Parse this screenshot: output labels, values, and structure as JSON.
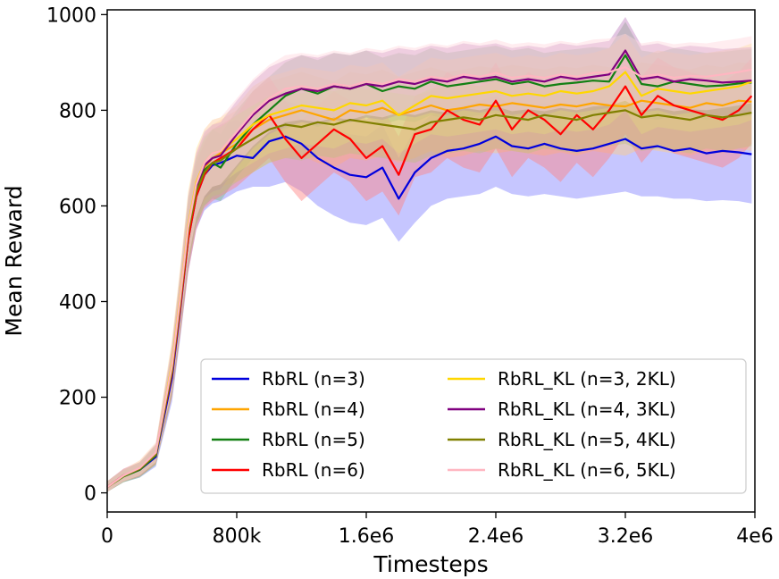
{
  "chart_data": {
    "type": "line",
    "title": "",
    "xlabel": "Timesteps",
    "ylabel": "Mean Reward",
    "xlim": [
      0,
      4000000
    ],
    "ylim": [
      -40,
      1010
    ],
    "xticks": [
      0,
      800000,
      1600000,
      2400000,
      3200000,
      4000000
    ],
    "xtick_labels": [
      "0",
      "800k",
      "1.6e6",
      "2.4e6",
      "3.2e6",
      "4e6"
    ],
    "yticks": [
      0,
      200,
      400,
      600,
      800,
      1000
    ],
    "ytick_labels": [
      "0",
      "200",
      "400",
      "600",
      "800",
      "1000"
    ],
    "grid": false,
    "legend_position": "bottom-right",
    "legend_columns": 2,
    "x": [
      0,
      100000,
      200000,
      300000,
      400000,
      450000,
      500000,
      550000,
      600000,
      650000,
      700000,
      800000,
      900000,
      1000000,
      1100000,
      1200000,
      1300000,
      1400000,
      1500000,
      1600000,
      1700000,
      1800000,
      1900000,
      2000000,
      2100000,
      2200000,
      2300000,
      2400000,
      2500000,
      2600000,
      2700000,
      2800000,
      2900000,
      3000000,
      3100000,
      3200000,
      3300000,
      3400000,
      3500000,
      3600000,
      3700000,
      3800000,
      3900000,
      3980000
    ],
    "series": [
      {
        "name": "RbRL (n=3)",
        "color": "#0000dd",
        "band": "#8080ff",
        "values": [
          12,
          35,
          48,
          75,
          240,
          380,
          530,
          620,
          665,
          685,
          690,
          705,
          700,
          735,
          745,
          730,
          700,
          680,
          665,
          660,
          680,
          615,
          670,
          700,
          715,
          720,
          730,
          745,
          725,
          720,
          730,
          720,
          715,
          720,
          730,
          740,
          720,
          725,
          715,
          720,
          710,
          715,
          712,
          708
        ],
        "lower": [
          2,
          22,
          32,
          55,
          190,
          320,
          460,
          550,
          590,
          605,
          610,
          630,
          640,
          640,
          650,
          630,
          600,
          580,
          565,
          560,
          575,
          525,
          565,
          600,
          615,
          620,
          625,
          640,
          625,
          620,
          625,
          620,
          615,
          620,
          625,
          630,
          620,
          620,
          615,
          615,
          610,
          612,
          610,
          605
        ],
        "upper": [
          24,
          48,
          62,
          95,
          290,
          440,
          600,
          690,
          730,
          760,
          770,
          780,
          760,
          800,
          820,
          810,
          780,
          760,
          750,
          745,
          770,
          700,
          760,
          790,
          800,
          810,
          820,
          830,
          810,
          805,
          815,
          805,
          800,
          805,
          815,
          830,
          810,
          815,
          805,
          810,
          800,
          805,
          802,
          800
        ]
      },
      {
        "name": "RbRL (n=4)",
        "color": "#ffa500",
        "band": "#ffcc80",
        "values": [
          12,
          36,
          50,
          80,
          255,
          395,
          545,
          640,
          680,
          700,
          710,
          730,
          760,
          780,
          790,
          800,
          790,
          780,
          800,
          795,
          805,
          790,
          800,
          810,
          800,
          805,
          812,
          808,
          815,
          810,
          805,
          812,
          808,
          815,
          810,
          808,
          820,
          815,
          810,
          805,
          815,
          810,
          820,
          818
        ],
        "lower": [
          2,
          24,
          34,
          60,
          205,
          335,
          475,
          570,
          610,
          630,
          640,
          650,
          670,
          690,
          700,
          705,
          690,
          680,
          700,
          695,
          705,
          690,
          700,
          715,
          700,
          705,
          715,
          710,
          715,
          710,
          705,
          712,
          705,
          715,
          710,
          705,
          720,
          715,
          710,
          705,
          715,
          710,
          720,
          715
        ],
        "upper": [
          24,
          50,
          64,
          100,
          305,
          455,
          615,
          710,
          750,
          770,
          780,
          800,
          840,
          860,
          870,
          880,
          870,
          860,
          880,
          875,
          885,
          870,
          880,
          890,
          880,
          885,
          892,
          888,
          895,
          890,
          885,
          892,
          888,
          895,
          890,
          888,
          900,
          895,
          890,
          885,
          895,
          890,
          900,
          898
        ]
      },
      {
        "name": "RbRL (n=5)",
        "color": "#138013",
        "band": "#7fbf7f",
        "values": [
          12,
          34,
          48,
          78,
          250,
          390,
          540,
          630,
          675,
          690,
          680,
          730,
          770,
          800,
          830,
          845,
          835,
          850,
          845,
          855,
          840,
          850,
          845,
          860,
          850,
          855,
          860,
          865,
          855,
          860,
          850,
          855,
          858,
          862,
          860,
          915,
          855,
          850,
          860,
          855,
          850,
          852,
          856,
          858
        ],
        "lower": [
          2,
          22,
          32,
          58,
          200,
          330,
          470,
          560,
          600,
          615,
          610,
          660,
          700,
          730,
          760,
          775,
          765,
          780,
          775,
          785,
          770,
          780,
          775,
          790,
          780,
          785,
          790,
          795,
          785,
          790,
          780,
          785,
          788,
          792,
          790,
          845,
          785,
          780,
          790,
          785,
          780,
          782,
          786,
          788
        ],
        "upper": [
          24,
          48,
          62,
          98,
          300,
          450,
          610,
          700,
          745,
          760,
          750,
          800,
          840,
          870,
          900,
          915,
          905,
          920,
          915,
          925,
          910,
          920,
          915,
          930,
          920,
          925,
          930,
          935,
          925,
          930,
          920,
          925,
          928,
          932,
          930,
          985,
          925,
          920,
          930,
          925,
          920,
          922,
          926,
          928
        ]
      },
      {
        "name": "RbRL (n=6)",
        "color": "#ff0000",
        "band": "#ff8080",
        "values": [
          12,
          36,
          50,
          80,
          250,
          385,
          530,
          620,
          665,
          690,
          700,
          720,
          760,
          790,
          740,
          700,
          730,
          760,
          740,
          700,
          725,
          665,
          750,
          760,
          800,
          780,
          770,
          820,
          760,
          800,
          780,
          750,
          790,
          760,
          800,
          850,
          790,
          830,
          810,
          800,
          790,
          780,
          800,
          830
        ],
        "lower": [
          2,
          24,
          34,
          60,
          200,
          325,
          460,
          550,
          595,
          610,
          620,
          640,
          670,
          700,
          650,
          610,
          640,
          670,
          650,
          610,
          630,
          580,
          660,
          670,
          700,
          680,
          670,
          720,
          660,
          700,
          680,
          650,
          690,
          660,
          700,
          750,
          690,
          730,
          710,
          700,
          690,
          680,
          700,
          730
        ],
        "upper": [
          24,
          50,
          64,
          100,
          300,
          445,
          600,
          690,
          735,
          760,
          770,
          790,
          840,
          870,
          820,
          780,
          810,
          840,
          820,
          780,
          805,
          745,
          830,
          840,
          880,
          860,
          850,
          900,
          840,
          880,
          860,
          830,
          870,
          840,
          880,
          930,
          870,
          910,
          890,
          880,
          870,
          860,
          880,
          910
        ]
      },
      {
        "name": "RbRL_KL (n=3, 2KL)",
        "color": "#ffd700",
        "band": "#ffe680",
        "values": [
          12,
          35,
          52,
          82,
          270,
          410,
          560,
          650,
          690,
          710,
          715,
          740,
          770,
          790,
          800,
          810,
          805,
          800,
          815,
          810,
          820,
          790,
          810,
          830,
          825,
          830,
          835,
          840,
          830,
          835,
          830,
          840,
          835,
          840,
          850,
          880,
          830,
          845,
          840,
          835,
          840,
          845,
          850,
          860
        ],
        "lower": [
          2,
          24,
          36,
          62,
          220,
          350,
          490,
          580,
          620,
          640,
          645,
          670,
          690,
          710,
          720,
          730,
          725,
          720,
          735,
          730,
          740,
          710,
          730,
          750,
          745,
          750,
          755,
          760,
          750,
          755,
          750,
          760,
          755,
          760,
          770,
          800,
          750,
          765,
          760,
          755,
          760,
          765,
          770,
          780
        ],
        "upper": [
          24,
          48,
          68,
          104,
          320,
          470,
          630,
          720,
          760,
          780,
          785,
          810,
          850,
          870,
          880,
          890,
          885,
          880,
          895,
          890,
          900,
          870,
          890,
          910,
          905,
          910,
          915,
          920,
          910,
          915,
          910,
          920,
          915,
          920,
          930,
          960,
          910,
          925,
          920,
          915,
          920,
          925,
          930,
          940
        ]
      },
      {
        "name": "RbRL_KL (n=4, 3KL)",
        "color": "#800080",
        "band": "#bf80bf",
        "values": [
          12,
          36,
          50,
          82,
          260,
          400,
          550,
          640,
          685,
          700,
          705,
          750,
          790,
          820,
          835,
          845,
          840,
          850,
          845,
          855,
          850,
          860,
          855,
          865,
          860,
          870,
          865,
          870,
          860,
          865,
          860,
          870,
          865,
          870,
          875,
          925,
          865,
          870,
          860,
          865,
          862,
          858,
          860,
          862
        ],
        "lower": [
          2,
          24,
          34,
          62,
          210,
          340,
          480,
          570,
          615,
          630,
          635,
          680,
          720,
          750,
          765,
          775,
          770,
          780,
          775,
          785,
          780,
          790,
          785,
          795,
          790,
          800,
          795,
          800,
          790,
          795,
          790,
          800,
          795,
          800,
          805,
          855,
          795,
          800,
          790,
          795,
          792,
          788,
          790,
          792
        ],
        "upper": [
          24,
          50,
          64,
          102,
          310,
          460,
          620,
          710,
          755,
          770,
          775,
          820,
          860,
          890,
          905,
          915,
          910,
          920,
          915,
          925,
          920,
          930,
          925,
          935,
          930,
          940,
          935,
          940,
          930,
          935,
          930,
          940,
          935,
          940,
          945,
          995,
          935,
          940,
          930,
          935,
          932,
          928,
          930,
          932
        ]
      },
      {
        "name": "RbRL_KL (n=5, 4KL)",
        "color": "#808000",
        "band": "#bfbf80",
        "values": [
          12,
          35,
          50,
          80,
          255,
          395,
          545,
          630,
          670,
          690,
          695,
          720,
          740,
          760,
          770,
          765,
          775,
          770,
          780,
          775,
          770,
          765,
          760,
          775,
          780,
          785,
          780,
          790,
          785,
          780,
          790,
          785,
          780,
          790,
          795,
          800,
          785,
          790,
          785,
          780,
          790,
          785,
          790,
          795
        ],
        "lower": [
          2,
          22,
          34,
          60,
          205,
          335,
          475,
          560,
          600,
          620,
          625,
          650,
          670,
          690,
          700,
          695,
          705,
          700,
          710,
          705,
          700,
          695,
          690,
          705,
          710,
          715,
          710,
          720,
          715,
          710,
          720,
          715,
          710,
          720,
          725,
          730,
          715,
          720,
          715,
          710,
          720,
          715,
          720,
          725
        ],
        "upper": [
          24,
          48,
          64,
          100,
          305,
          455,
          615,
          700,
          740,
          760,
          765,
          790,
          810,
          830,
          840,
          835,
          845,
          840,
          850,
          845,
          840,
          835,
          830,
          845,
          850,
          855,
          850,
          860,
          855,
          850,
          860,
          855,
          850,
          860,
          865,
          870,
          855,
          860,
          855,
          850,
          860,
          855,
          860,
          865
        ]
      },
      {
        "name": "RbRL_KL (n=6, 5KL)",
        "color": "#ffb6c1",
        "band": "#ffd6dd",
        "values": [
          12,
          36,
          52,
          84,
          265,
          405,
          555,
          645,
          690,
          710,
          715,
          755,
          795,
          825,
          845,
          850,
          845,
          855,
          850,
          860,
          855,
          865,
          860,
          870,
          865,
          875,
          870,
          878,
          868,
          872,
          868,
          875,
          870,
          878,
          880,
          890,
          870,
          875,
          868,
          872,
          870,
          875,
          880,
          885
        ],
        "lower": [
          2,
          24,
          36,
          64,
          215,
          345,
          485,
          575,
          620,
          640,
          645,
          685,
          725,
          755,
          775,
          780,
          775,
          785,
          780,
          790,
          785,
          795,
          790,
          800,
          795,
          805,
          800,
          808,
          798,
          802,
          798,
          805,
          800,
          808,
          810,
          820,
          800,
          805,
          798,
          802,
          800,
          805,
          810,
          815
        ],
        "upper": [
          24,
          50,
          68,
          106,
          315,
          465,
          625,
          715,
          760,
          780,
          785,
          825,
          865,
          895,
          915,
          920,
          915,
          925,
          920,
          930,
          925,
          935,
          930,
          940,
          935,
          945,
          940,
          948,
          938,
          942,
          938,
          945,
          940,
          948,
          950,
          960,
          940,
          945,
          938,
          942,
          940,
          945,
          950,
          955
        ]
      }
    ]
  }
}
